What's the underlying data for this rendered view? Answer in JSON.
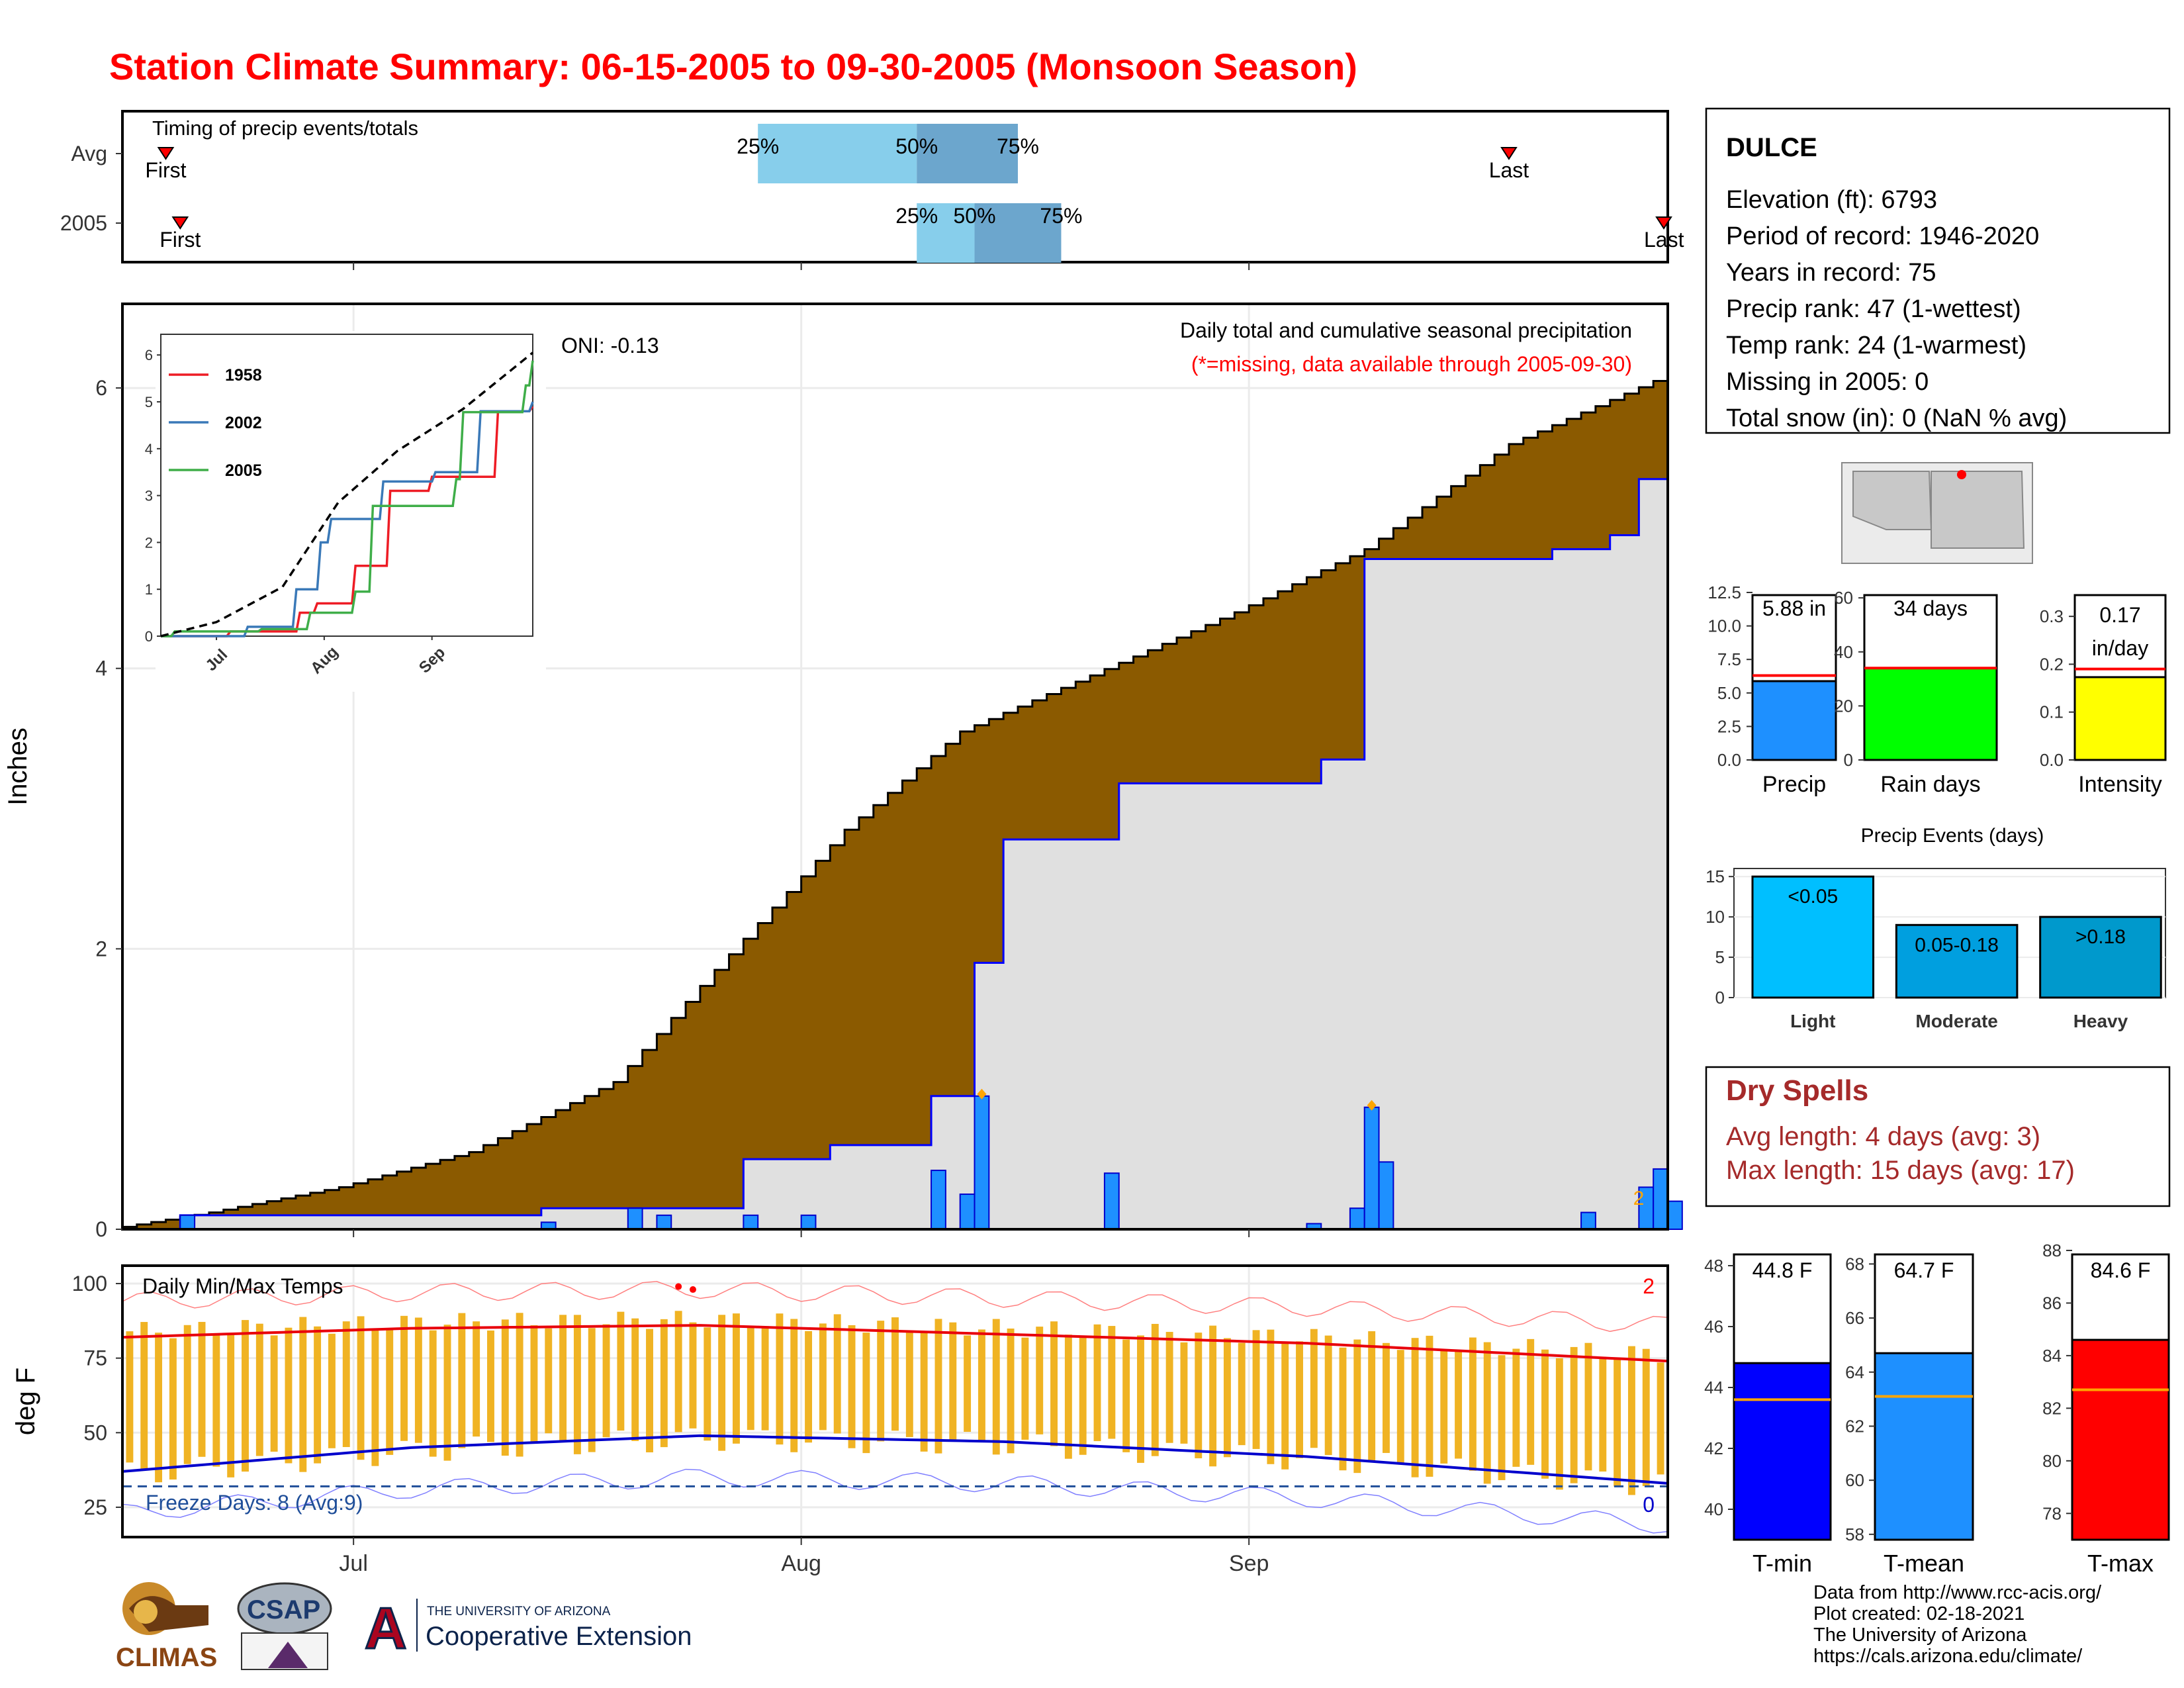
{
  "title": "Station Climate Summary: 06-15-2005 to 09-30-2005 (Monsoon Season)",
  "timing": {
    "label": "Timing of precip events/totals",
    "rows": [
      {
        "name": "Avg",
        "first": "First",
        "last": "Last",
        "p25": "25%",
        "p50": "50%",
        "p75": "75%",
        "first_date": "2005-06-18",
        "last_date": "2005-09-19",
        "p25_date": "2005-07-29",
        "p50_date": "2005-08-09",
        "p75_date": "2005-08-16"
      },
      {
        "name": "2005",
        "first": "First",
        "last": "Last",
        "p25": "25%",
        "p50": "50%",
        "p75": "75%",
        "first_date": "2005-06-19",
        "last_date": "2005-09-30",
        "p25_date": "2005-08-09",
        "p50_date": "2005-08-13",
        "p75_date": "2005-08-19"
      }
    ]
  },
  "main": {
    "ylabel": "Inches",
    "onI": "ONI: -0.13",
    "caption": "Daily total and cumulative seasonal precipitation",
    "caption_missing": "(*=missing, data available through 2005-09-30)",
    "y_ticks": [
      "0",
      "2",
      "4",
      "6"
    ],
    "x_ticks": [
      "Jul",
      "Aug",
      "Sep"
    ],
    "colors": {
      "avg_fill": "#8b5a00",
      "year_line": "#0000ff",
      "bars": "#1e90ff",
      "extreme_marker": "#ffa500"
    }
  },
  "inset": {
    "legend": [
      "1958",
      "2002",
      "2005"
    ],
    "colors": [
      "#ee1c25",
      "#3a79b8",
      "#3fae49"
    ],
    "y_ticks": [
      "0",
      "1",
      "2",
      "3",
      "4",
      "5",
      "6"
    ],
    "x_ticks": [
      "Jul",
      "Aug",
      "Sep"
    ]
  },
  "temps": {
    "label": "Daily Min/Max Temps",
    "ylabel": "deg F",
    "freeze": "Freeze Days: 8 (Avg:9)",
    "hot_count": "2",
    "freeze_count": "0",
    "y_ticks": [
      "25",
      "50",
      "75",
      "100"
    ],
    "x_ticks": [
      "Jul",
      "Aug",
      "Sep"
    ],
    "colors": {
      "bars": "#f0b323",
      "max_line": "#e8000b",
      "min_line": "#0000cc"
    }
  },
  "station": {
    "name": "DULCE",
    "lines": [
      "Elevation (ft): 6793",
      "Period of record: 1946-2020",
      "Years in record: 75",
      "Precip rank: 47 (1-wettest)",
      "Temp rank: 24 (1-warmest)",
      "Missing in 2005: 0",
      "Total snow (in): 0 (NaN % avg)"
    ]
  },
  "summary_bars": [
    {
      "label": "Precip",
      "value_text": "5.88 in",
      "value": 5.88,
      "avg": 6.3,
      "max": 12.5,
      "ticks": [
        "0.0",
        "2.5",
        "5.0",
        "7.5",
        "10.0",
        "12.5"
      ],
      "color": "#1e90ff"
    },
    {
      "label": "Rain days",
      "value_text": "34 days",
      "value": 34,
      "avg": 34,
      "max": 62,
      "ticks": [
        "0",
        "20",
        "40",
        "60"
      ],
      "color": "#00ff00"
    },
    {
      "label": "Intensity",
      "value_text": "0.17\nin/day",
      "value_a": "0.17",
      "value_b": "in/day",
      "value": 0.173,
      "avg": 0.19,
      "max": 0.35,
      "ticks": [
        "0.0",
        "0.1",
        "0.2",
        "0.3"
      ],
      "color": "#ffff00"
    }
  ],
  "events": {
    "title": "Precip Events (days)",
    "categories": [
      "Light",
      "Moderate",
      "Heavy"
    ],
    "labels": [
      "<0.05",
      "0.05-0.18",
      ">0.18"
    ],
    "values": [
      15,
      9,
      10
    ],
    "ticks": [
      "0",
      "5",
      "10",
      "15"
    ],
    "colors": [
      "#00bfff",
      "#009fdf",
      "#0099cc"
    ]
  },
  "dry_spells": {
    "title": "Dry Spells",
    "avg": "Avg length: 4 days (avg: 3)",
    "max": "Max length: 15 days (avg: 17)"
  },
  "temp_bars": [
    {
      "label": "T-min",
      "value_text": "44.8 F",
      "value": 44.8,
      "avg": 43.6,
      "min": 39,
      "max": 48.5,
      "ticks": [
        "40",
        "42",
        "44",
        "46",
        "48"
      ],
      "color": "#0000ff"
    },
    {
      "label": "T-mean",
      "value_text": "64.7 F",
      "value": 64.7,
      "avg": 63.1,
      "min": 57.8,
      "max": 68.5,
      "ticks": [
        "58",
        "60",
        "62",
        "64",
        "66",
        "68"
      ],
      "color": "#1e90ff"
    },
    {
      "label": "T-max",
      "value_text": "84.6 F",
      "value": 84.6,
      "avg": 82.7,
      "min": 77,
      "max": 88,
      "ticks": [
        "78",
        "80",
        "82",
        "84",
        "86",
        "88"
      ],
      "color": "#ff0000"
    }
  ],
  "footer": [
    "Data from http://www.rcc-acis.org/",
    "Plot created: 02-18-2021",
    "The University of Arizona",
    "https://cals.arizona.edu/climate/"
  ],
  "logos": {
    "climas": "CLIMAS",
    "csap": "CSAP",
    "ua": "A",
    "ua_top": "THE UNIVERSITY OF ARIZONA",
    "ua_bottom": "Cooperative Extension"
  },
  "chart_data": [
    {
      "type": "area",
      "title": "Daily total and cumulative seasonal precipitation",
      "ylabel": "Inches",
      "x_range": [
        "2005-06-15",
        "2005-09-30"
      ],
      "ylim": [
        0,
        6.6
      ],
      "series": [
        {
          "name": "cumulative avg",
          "x": [
            "2005-06-15",
            "2005-06-22",
            "2005-07-01",
            "2005-07-10",
            "2005-07-20",
            "2005-07-27",
            "2005-08-05",
            "2005-08-13",
            "2005-08-22",
            "2005-09-01",
            "2005-09-10",
            "2005-09-20",
            "2005-09-30"
          ],
          "values": [
            0.0,
            0.12,
            0.3,
            0.55,
            1.05,
            1.85,
            2.85,
            3.55,
            3.95,
            4.4,
            4.85,
            5.6,
            6.05
          ]
        },
        {
          "name": "cumulative 2005",
          "x": [
            "2005-06-15",
            "2005-06-19",
            "2005-07-14",
            "2005-07-28",
            "2005-08-03",
            "2005-08-10",
            "2005-08-13",
            "2005-08-15",
            "2005-08-23",
            "2005-09-06",
            "2005-09-09",
            "2005-09-10",
            "2005-09-22",
            "2005-09-26",
            "2005-09-28",
            "2005-09-30"
          ],
          "values": [
            0.0,
            0.1,
            0.15,
            0.5,
            0.6,
            0.95,
            1.9,
            2.78,
            3.18,
            3.35,
            4.78,
            4.78,
            4.85,
            4.95,
            5.35,
            5.88
          ]
        }
      ],
      "daily_bars": {
        "x": [
          "2005-06-19",
          "2005-07-14",
          "2005-07-20",
          "2005-07-22",
          "2005-07-28",
          "2005-08-01",
          "2005-08-10",
          "2005-08-12",
          "2005-08-13",
          "2005-08-22",
          "2005-09-05",
          "2005-09-08",
          "2005-09-09",
          "2005-09-10",
          "2005-09-24",
          "2005-09-28",
          "2005-09-29",
          "2005-09-30"
        ],
        "values": [
          0.1,
          0.05,
          0.15,
          0.1,
          0.1,
          0.1,
          0.42,
          0.25,
          0.95,
          0.4,
          0.04,
          0.15,
          0.87,
          0.48,
          0.12,
          0.3,
          0.43,
          0.2
        ]
      }
    },
    {
      "type": "line",
      "title": "",
      "x_range": [
        "2005-06-15",
        "2005-09-30"
      ],
      "ylim": [
        0,
        6.3
      ],
      "series": [
        {
          "name": "1958",
          "x": [
            "2005-06-15",
            "2005-07-05",
            "2005-07-25",
            "2005-07-30",
            "2005-08-10",
            "2005-08-20",
            "2005-09-01",
            "2005-09-20",
            "2005-09-30"
          ],
          "values": [
            0,
            0.1,
            0.5,
            0.7,
            1.5,
            3.1,
            3.4,
            4.8,
            4.9
          ]
        },
        {
          "name": "2002",
          "x": [
            "2005-06-15",
            "2005-07-10",
            "2005-07-24",
            "2005-07-31",
            "2005-08-03",
            "2005-08-18",
            "2005-09-02",
            "2005-09-15",
            "2005-09-30"
          ],
          "values": [
            0,
            0.2,
            1.0,
            2.0,
            2.5,
            3.3,
            3.5,
            4.8,
            5.0
          ]
        },
        {
          "name": "2005",
          "x": [
            "2005-06-15",
            "2005-06-19",
            "2005-07-14",
            "2005-07-28",
            "2005-08-10",
            "2005-08-15",
            "2005-09-08",
            "2005-09-10",
            "2005-09-28",
            "2005-09-30"
          ],
          "values": [
            0,
            0.1,
            0.15,
            0.5,
            0.95,
            2.78,
            3.35,
            4.78,
            5.35,
            5.88
          ]
        },
        {
          "name": "average",
          "x": [
            "2005-06-15",
            "2005-07-01",
            "2005-07-20",
            "2005-08-05",
            "2005-08-22",
            "2005-09-10",
            "2005-09-30"
          ],
          "values": [
            0,
            0.3,
            1.05,
            2.85,
            3.95,
            4.85,
            6.05
          ]
        }
      ]
    },
    {
      "type": "bar",
      "title": "Daily Min/Max Temps",
      "ylabel": "deg F",
      "x_range": [
        "2005-06-15",
        "2005-09-30"
      ],
      "ylim": [
        15,
        106
      ],
      "series": [
        {
          "name": "avg max",
          "x": [
            "2005-06-15",
            "2005-07-05",
            "2005-07-25",
            "2005-08-15",
            "2005-09-05",
            "2005-09-30"
          ],
          "values": [
            82,
            85,
            86,
            83,
            80,
            74
          ]
        },
        {
          "name": "avg min",
          "x": [
            "2005-06-15",
            "2005-07-05",
            "2005-07-25",
            "2005-08-15",
            "2005-09-05",
            "2005-09-30"
          ],
          "values": [
            37,
            45,
            49,
            47,
            42,
            33
          ]
        },
        {
          "name": "freeze line",
          "x": [
            "2005-06-15",
            "2005-09-30"
          ],
          "values": [
            32,
            32
          ]
        }
      ]
    },
    {
      "type": "bar",
      "title": "Precip Events (days)",
      "categories": [
        "Light",
        "Moderate",
        "Heavy"
      ],
      "values": [
        15,
        9,
        10
      ],
      "ylim": [
        0,
        16
      ]
    }
  ]
}
